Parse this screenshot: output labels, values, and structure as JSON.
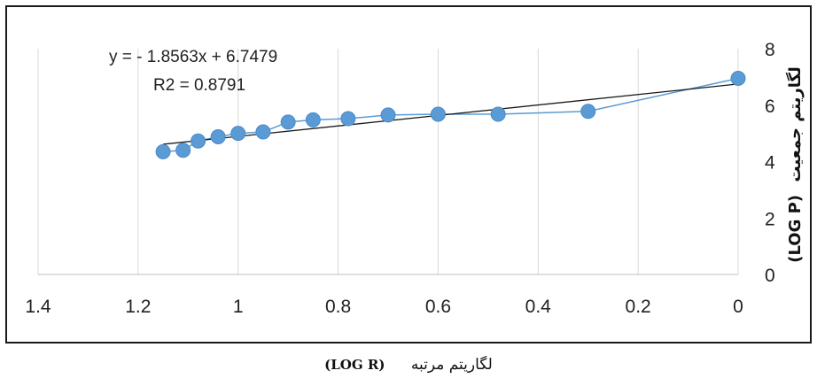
{
  "chart_data": {
    "type": "scatter",
    "title": "",
    "xlabel_fa": "لگاریتم مرتبه",
    "xlabel_code": "(LOG R)",
    "ylabel_fa": "لگاریتم جمعیت",
    "ylabel_code": "(LOG P)",
    "xlim": [
      0,
      1.4
    ],
    "x_reversed": true,
    "ylim": [
      0,
      8
    ],
    "x_ticks": [
      "1.4",
      "1.2",
      "1",
      "0.8",
      "0.6",
      "0.4",
      "0.2",
      "0"
    ],
    "y_ticks": [
      "8",
      "6",
      "4",
      "2",
      "0"
    ],
    "grid": "vertical",
    "y_axis_side": "right",
    "series": [
      {
        "points": [
          [
            1.15,
            4.35
          ],
          [
            1.11,
            4.4
          ],
          [
            1.08,
            4.73
          ],
          [
            1.04,
            4.88
          ],
          [
            1.0,
            5.0
          ],
          [
            0.95,
            5.05
          ],
          [
            0.9,
            5.4
          ],
          [
            0.85,
            5.48
          ],
          [
            0.78,
            5.52
          ],
          [
            0.7,
            5.65
          ],
          [
            0.6,
            5.68
          ],
          [
            0.48,
            5.68
          ],
          [
            0.3,
            5.78
          ],
          [
            0.0,
            6.95
          ]
        ],
        "marker_color": "#5b9bd5",
        "line_color": "#5b9bd5"
      }
    ],
    "trendline": {
      "slope": -1.8563,
      "intercept": 6.7479,
      "x_range": [
        0.0,
        1.15
      ],
      "color": "#1a1a1a",
      "equation": "y = - 1.8563x + 6.7479",
      "r2": "R2 = 0.8791"
    }
  }
}
